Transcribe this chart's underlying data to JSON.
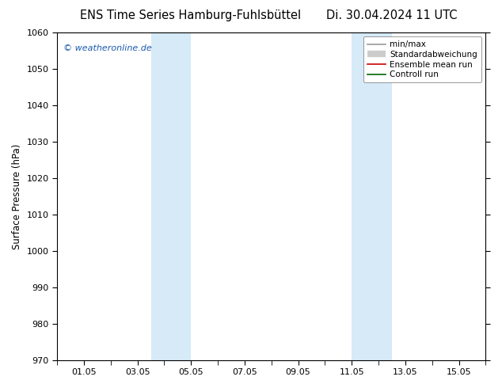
{
  "title_left": "ENS Time Series Hamburg-Fuhlsbüttel",
  "title_right": "Di. 30.04.2024 11 UTC",
  "ylabel": "Surface Pressure (hPa)",
  "watermark": "© weatheronline.de",
  "ylim": [
    970,
    1060
  ],
  "yticks": [
    970,
    980,
    990,
    1000,
    1010,
    1020,
    1030,
    1040,
    1050,
    1060
  ],
  "x_labels": [
    "01.05",
    "03.05",
    "05.05",
    "07.05",
    "09.05",
    "11.05",
    "13.05",
    "15.05"
  ],
  "x_label_days": [
    1,
    3,
    5,
    7,
    9,
    11,
    13,
    15
  ],
  "x_minor_days": [
    0,
    1,
    2,
    3,
    4,
    5,
    6,
    7,
    8,
    9,
    10,
    11,
    12,
    13,
    14,
    15,
    16
  ],
  "xlim": [
    0,
    16
  ],
  "shaded_regions": [
    {
      "start_day": 3.5,
      "end_day": 5.0
    },
    {
      "start_day": 11.0,
      "end_day": 12.5
    }
  ],
  "shaded_color": "#d6eaf8",
  "legend_items": [
    {
      "label": "min/max",
      "color": "#999999",
      "lw": 1.2
    },
    {
      "label": "Standardabweichung",
      "color": "#cccccc",
      "lw": 6
    },
    {
      "label": "Ensemble mean run",
      "color": "#cc0000",
      "lw": 1.2
    },
    {
      "label": "Controll run",
      "color": "#006600",
      "lw": 1.2
    }
  ],
  "background_color": "#ffffff",
  "plot_bg_color": "#ffffff",
  "title_fontsize": 10.5,
  "axis_fontsize": 8.5,
  "tick_fontsize": 8,
  "watermark_color": "#1a5aad",
  "watermark_fontsize": 8
}
